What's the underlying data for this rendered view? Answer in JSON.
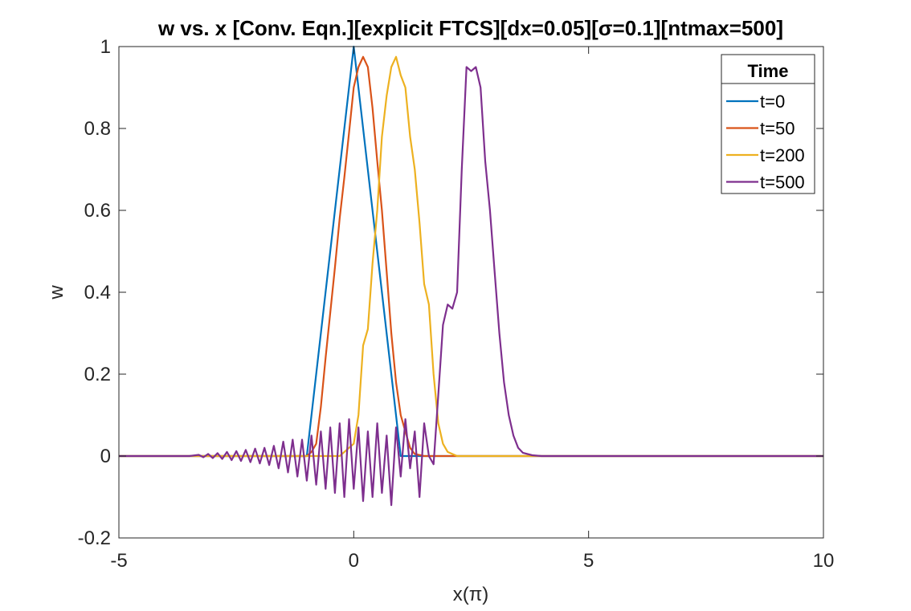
{
  "chart_data": {
    "type": "line",
    "title": "w vs. x [Conv. Eqn.][explicit FTCS][dx=0.05][σ=0.1][ntmax=500]",
    "xlabel": "x(π)",
    "ylabel": "w",
    "xlim": [
      -5,
      10
    ],
    "ylim": [
      -0.2,
      1
    ],
    "xticks": [
      -5,
      0,
      5,
      10
    ],
    "xtick_labels": [
      "-5",
      "0",
      "5",
      "10"
    ],
    "yticks": [
      -0.2,
      0,
      0.2,
      0.4,
      0.6,
      0.8,
      1
    ],
    "ytick_labels": [
      "-0.2",
      "0",
      "0.2",
      "0.4",
      "0.6",
      "0.8",
      "1"
    ],
    "grid": false,
    "legend": {
      "title": "Time",
      "placement": "top-right"
    },
    "series": [
      {
        "name": "t=0",
        "color": "#0072BD",
        "x": [
          -5,
          -1,
          0,
          1,
          10
        ],
        "y": [
          0,
          0,
          1,
          0,
          0
        ]
      },
      {
        "name": "t=50",
        "color": "#D95319",
        "x": [
          -5,
          -1.2,
          -1.0,
          -0.9,
          -0.8,
          -0.7,
          -0.6,
          -0.5,
          -0.4,
          -0.3,
          -0.2,
          -0.1,
          0.0,
          0.1,
          0.2,
          0.3,
          0.4,
          0.5,
          0.6,
          0.7,
          0.8,
          0.9,
          1.0,
          1.1,
          1.2,
          1.3,
          1.5,
          1.7,
          2.0,
          10
        ],
        "y": [
          0,
          0,
          0,
          0.01,
          0.03,
          0.12,
          0.24,
          0.35,
          0.46,
          0.58,
          0.68,
          0.79,
          0.9,
          0.95,
          0.975,
          0.95,
          0.85,
          0.72,
          0.6,
          0.45,
          0.3,
          0.18,
          0.1,
          0.06,
          0.02,
          0.005,
          0.0,
          0,
          0,
          0
        ]
      },
      {
        "name": "t=200",
        "color": "#EDB120",
        "x": [
          -5,
          -0.3,
          -0.2,
          0.0,
          0.1,
          0.2,
          0.3,
          0.4,
          0.5,
          0.6,
          0.7,
          0.8,
          0.9,
          1.0,
          1.1,
          1.2,
          1.3,
          1.4,
          1.5,
          1.6,
          1.7,
          1.8,
          1.9,
          2.0,
          2.2,
          2.5,
          10
        ],
        "y": [
          0,
          0,
          0.01,
          0.03,
          0.1,
          0.27,
          0.31,
          0.47,
          0.6,
          0.78,
          0.88,
          0.95,
          0.975,
          0.93,
          0.9,
          0.78,
          0.7,
          0.57,
          0.42,
          0.37,
          0.2,
          0.08,
          0.03,
          0.01,
          0.0,
          0,
          0
        ]
      },
      {
        "name": "t=500",
        "color": "#7E2F8E",
        "x": [
          -5,
          -3.5,
          -3.3,
          -3.2,
          -3.1,
          -3.0,
          -2.9,
          -2.8,
          -2.7,
          -2.6,
          -2.5,
          -2.4,
          -2.3,
          -2.2,
          -2.1,
          -2.0,
          -1.9,
          -1.8,
          -1.7,
          -1.6,
          -1.5,
          -1.4,
          -1.3,
          -1.2,
          -1.1,
          -1.0,
          -0.9,
          -0.8,
          -0.7,
          -0.6,
          -0.5,
          -0.4,
          -0.3,
          -0.2,
          -0.1,
          0.0,
          0.1,
          0.2,
          0.3,
          0.4,
          0.5,
          0.6,
          0.7,
          0.8,
          0.9,
          1.0,
          1.1,
          1.2,
          1.3,
          1.4,
          1.5,
          1.6,
          1.7,
          1.8,
          1.9,
          2.0,
          2.1,
          2.2,
          2.3,
          2.4,
          2.5,
          2.6,
          2.7,
          2.8,
          2.9,
          3.0,
          3.1,
          3.2,
          3.3,
          3.4,
          3.5,
          3.6,
          3.8,
          4.0,
          10
        ],
        "y": [
          0,
          0,
          0.003,
          -0.003,
          0.005,
          -0.005,
          0.007,
          -0.007,
          0.01,
          -0.01,
          0.012,
          -0.012,
          0.015,
          -0.015,
          0.018,
          -0.018,
          0.02,
          -0.022,
          0.025,
          -0.03,
          0.035,
          -0.04,
          0.04,
          -0.05,
          0.04,
          -0.06,
          0.05,
          -0.07,
          0.06,
          -0.08,
          0.07,
          -0.09,
          0.08,
          -0.1,
          0.09,
          -0.08,
          0.07,
          -0.11,
          0.06,
          -0.1,
          0.08,
          -0.09,
          0.05,
          -0.12,
          0.07,
          -0.05,
          0.09,
          -0.03,
          0.06,
          -0.1,
          0.08,
          0.0,
          -0.02,
          0.15,
          0.32,
          0.37,
          0.36,
          0.4,
          0.7,
          0.95,
          0.94,
          0.95,
          0.9,
          0.72,
          0.6,
          0.45,
          0.3,
          0.18,
          0.1,
          0.05,
          0.02,
          0.008,
          0.002,
          0,
          0
        ]
      }
    ]
  }
}
